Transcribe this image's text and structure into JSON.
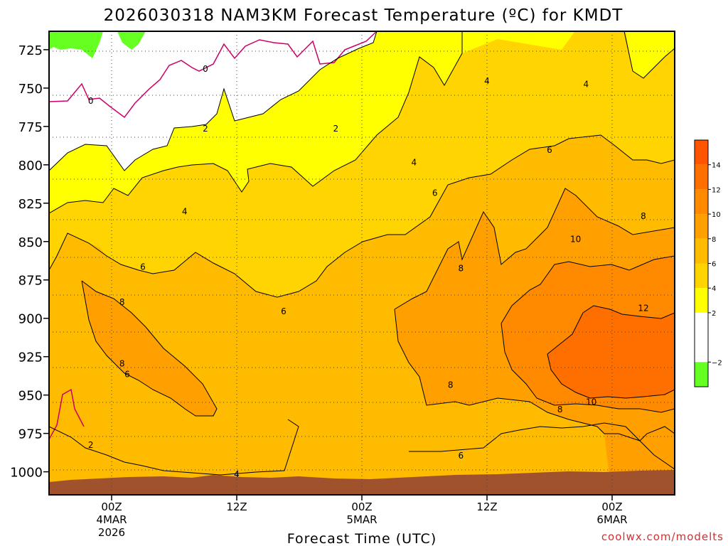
{
  "chart_data": {
    "type": "heatmap",
    "title": "2026030318 NAM3KM Forecast Temperature (ºC) for KMDT",
    "xlabel": "Forecast Time (UTC)",
    "ylabel": "",
    "watermark": "coolwx.com/modelts",
    "y_axis": {
      "unit": "hPa",
      "inverted": true,
      "range": [
        713,
        1015
      ],
      "ticks": [
        725,
        750,
        775,
        800,
        825,
        850,
        875,
        900,
        925,
        950,
        975,
        1000
      ]
    },
    "x_axis": {
      "unit": "hours",
      "range": [
        -6,
        54
      ],
      "ticks": [
        {
          "hour": 0,
          "label": "00Z",
          "sub1": "4MAR",
          "sub2": "2026"
        },
        {
          "hour": 12,
          "label": "12Z",
          "sub1": "",
          "sub2": ""
        },
        {
          "hour": 24,
          "label": "00Z",
          "sub1": "5MAR",
          "sub2": ""
        },
        {
          "hour": 36,
          "label": "12Z",
          "sub1": "",
          "sub2": ""
        },
        {
          "hour": 48,
          "label": "00Z",
          "sub1": "6MAR",
          "sub2": ""
        }
      ]
    },
    "colorbar": {
      "labels": [
        "14",
        "12",
        "10",
        "8",
        "6",
        "4",
        "2",
        "−2"
      ],
      "bins": [
        {
          "min": 14,
          "max": 16,
          "color": "#ff5500"
        },
        {
          "min": 12,
          "max": 14,
          "color": "#ff6f00"
        },
        {
          "min": 10,
          "max": 12,
          "color": "#ff8a00"
        },
        {
          "min": 8,
          "max": 10,
          "color": "#ffa000"
        },
        {
          "min": 6,
          "max": 8,
          "color": "#ffbb00"
        },
        {
          "min": 4,
          "max": 6,
          "color": "#ffd400"
        },
        {
          "min": 2,
          "max": 4,
          "color": "#ffff00"
        },
        {
          "min": -2,
          "max": 2,
          "color": "#ffffff"
        },
        {
          "min": -4,
          "max": -2,
          "color": "#66ff22"
        }
      ]
    },
    "colors": {
      "terrain": "#a0522d",
      "freezing_line": "#cc0066",
      "contour": "#000000",
      "watermark": "#cc3333"
    },
    "contour_labels": [
      {
        "text": "0",
        "hour": 9,
        "p": 737
      },
      {
        "text": "0",
        "hour": -2,
        "p": 758
      },
      {
        "text": "2",
        "hour": 9,
        "p": 776
      },
      {
        "text": "2",
        "hour": 21.5,
        "p": 776
      },
      {
        "text": "2",
        "hour": -2,
        "p": 982
      },
      {
        "text": "4",
        "hour": 36,
        "p": 745
      },
      {
        "text": "4",
        "hour": 45.5,
        "p": 747
      },
      {
        "text": "4",
        "hour": 29,
        "p": 798
      },
      {
        "text": "4",
        "hour": 7,
        "p": 830
      },
      {
        "text": "4",
        "hour": 12,
        "p": 1001
      },
      {
        "text": "6",
        "hour": 42,
        "p": 790
      },
      {
        "text": "6",
        "hour": 31,
        "p": 818
      },
      {
        "text": "6",
        "hour": 3,
        "p": 866
      },
      {
        "text": "6",
        "hour": 16.5,
        "p": 895
      },
      {
        "text": "6",
        "hour": 1.5,
        "p": 936
      },
      {
        "text": "6",
        "hour": 33.5,
        "p": 989
      },
      {
        "text": "8",
        "hour": 51,
        "p": 833
      },
      {
        "text": "8",
        "hour": 33.5,
        "p": 867
      },
      {
        "text": "8",
        "hour": 1,
        "p": 889
      },
      {
        "text": "8",
        "hour": 1,
        "p": 929
      },
      {
        "text": "8",
        "hour": 32.5,
        "p": 943
      },
      {
        "text": "8",
        "hour": 43,
        "p": 959
      },
      {
        "text": "10",
        "hour": 44.5,
        "p": 848
      },
      {
        "text": "10",
        "hour": 46,
        "p": 954
      },
      {
        "text": "12",
        "hour": 51,
        "p": 893
      }
    ]
  }
}
